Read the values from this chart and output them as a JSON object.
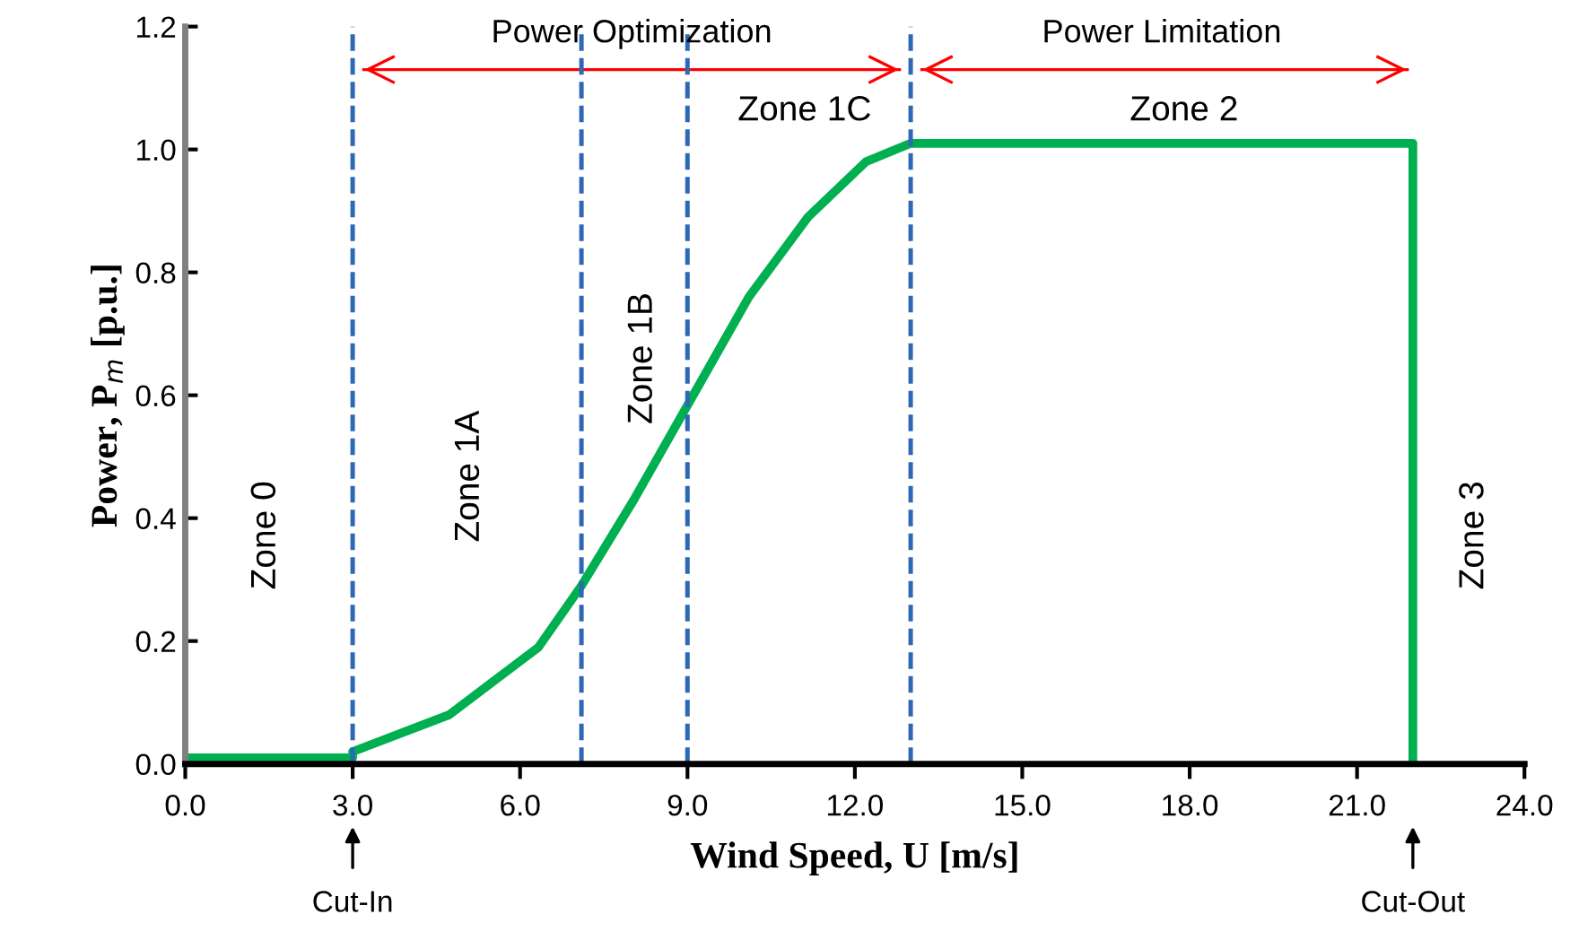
{
  "chart_data": {
    "type": "line",
    "xlabel": "Wind Speed, U [m/s]",
    "ylabel": "Power, P$_{m}$ [p.u.]",
    "x": [
      0,
      3.0,
      3.0,
      4.73,
      6.33,
      7.1,
      8.04,
      9.04,
      10.1,
      11.16,
      12.2,
      13.0,
      22.0,
      22.0
    ],
    "series": [
      {
        "color": "#00b050",
        "values": [
          0.01,
          0.01,
          0.02,
          0.08,
          0.19,
          0.29,
          0.43,
          0.59,
          0.76,
          0.89,
          0.98,
          1.01,
          1.01,
          0
        ]
      },
      {
        "color": "#ff0000",
        "x": [
          3.2,
          12.8
        ],
        "values": [
          1.13,
          1.13
        ]
      },
      {
        "color": "#ff0000",
        "x": [
          13.2,
          21.9
        ],
        "values": [
          1.13,
          1.13
        ]
      }
    ],
    "xlim": [
      0,
      24
    ],
    "ylim": [
      0,
      1.2
    ],
    "xticks": [
      {
        "value": 0,
        "label": "0.0"
      },
      {
        "value": 3,
        "label": "3.0"
      },
      {
        "value": 6,
        "label": "6.0"
      },
      {
        "value": 9,
        "label": "9.0"
      },
      {
        "value": 12,
        "label": "12.0"
      },
      {
        "value": 15,
        "label": "15.0"
      },
      {
        "value": 18,
        "label": "18.0"
      },
      {
        "value": 21,
        "label": "21.0"
      },
      {
        "value": 24,
        "label": "24.0"
      }
    ],
    "yticks": [
      {
        "value": 0,
        "label": "0.0"
      },
      0.2,
      0.4,
      0.6,
      0.8,
      {
        "value": 1,
        "label": "1.0"
      },
      1.2
    ],
    "ref_lines": [
      {
        "axis": "x",
        "value": 3.0,
        "color": "#2e67b5",
        "line_style": "dashed"
      },
      {
        "axis": "x",
        "value": 7.1,
        "color": "#2e67b5",
        "line_style": "dashed"
      },
      {
        "axis": "x",
        "value": 9.0,
        "color": "#2e67b5",
        "line_style": "dashed"
      },
      {
        "axis": "x",
        "value": 13.0,
        "color": "#2e67b5",
        "line_style": "dashed"
      }
    ],
    "annotations": [
      "Power Optimization",
      "Power Limitation",
      "Zone 0",
      "Zone 1A",
      "Zone 1B",
      "Zone 1C",
      "Zone 2",
      "Zone 3",
      "Cut-In",
      "Cut-Out"
    ],
    "grid": false,
    "marker": "none",
    "line_style": "solid"
  }
}
